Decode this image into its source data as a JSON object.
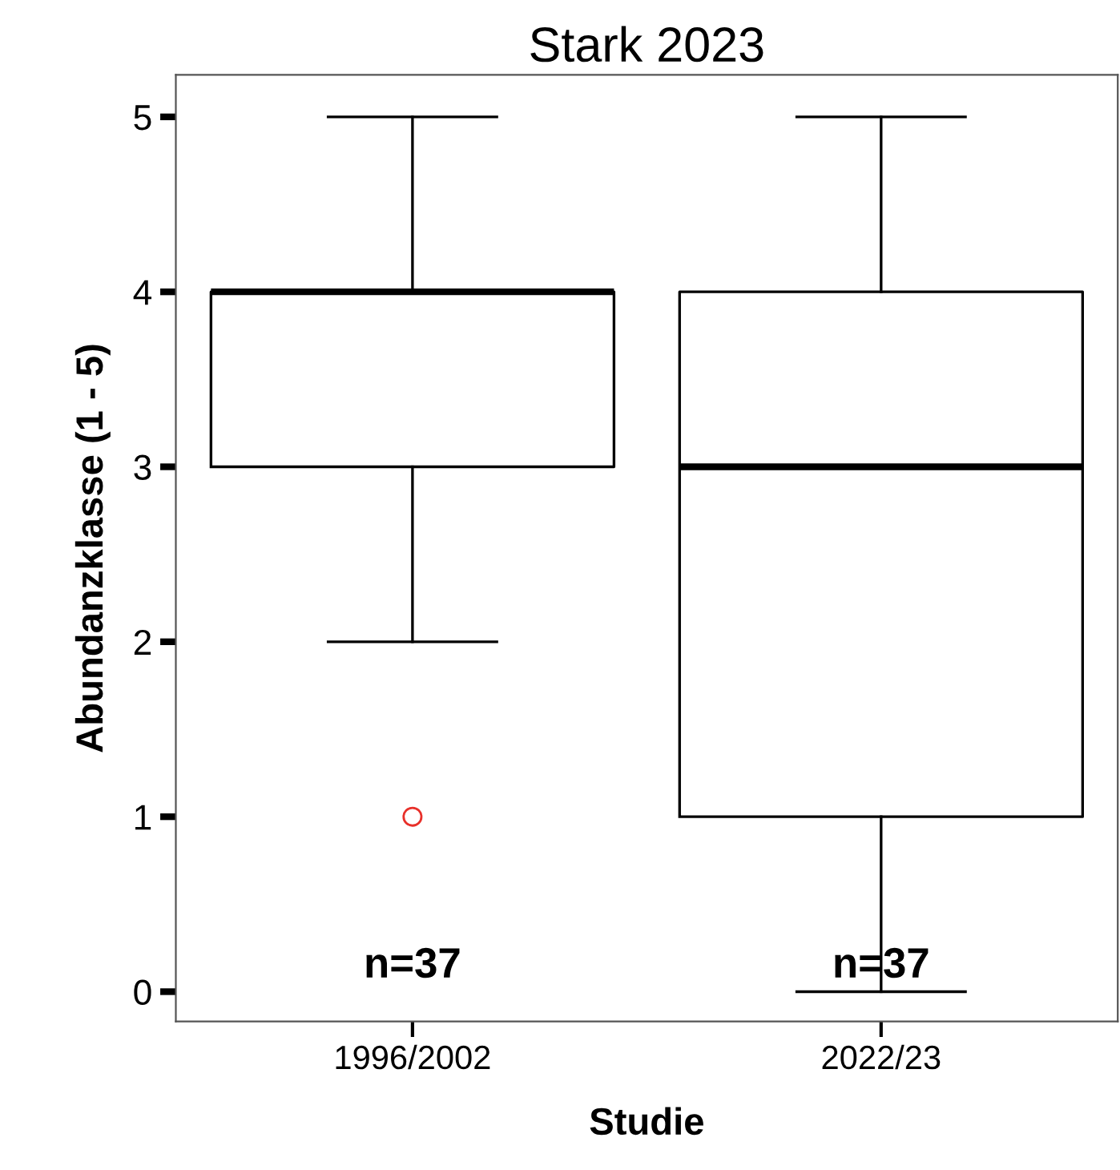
{
  "chart_data": {
    "type": "box",
    "title": "Stark 2023",
    "xlabel": "Studie",
    "ylabel": "Abundanzklasse (1 - 5)",
    "categories": [
      "1996/2002",
      "2022/23"
    ],
    "series": [
      {
        "color": "#000000",
        "boxes": [
          {
            "low": 2,
            "q1": 3,
            "median": 4,
            "q3": 4,
            "high": 5,
            "outliers": [
              1
            ]
          },
          {
            "low": 0,
            "q1": 1,
            "median": 3,
            "q3": 4,
            "high": 5
          }
        ]
      }
    ],
    "ylim": [
      -0.17,
      5.24
    ],
    "yticks": [
      0,
      1,
      2,
      3,
      4,
      5
    ],
    "grid": false,
    "legend": false,
    "annotations": [
      "n=37",
      "n=37"
    ]
  }
}
